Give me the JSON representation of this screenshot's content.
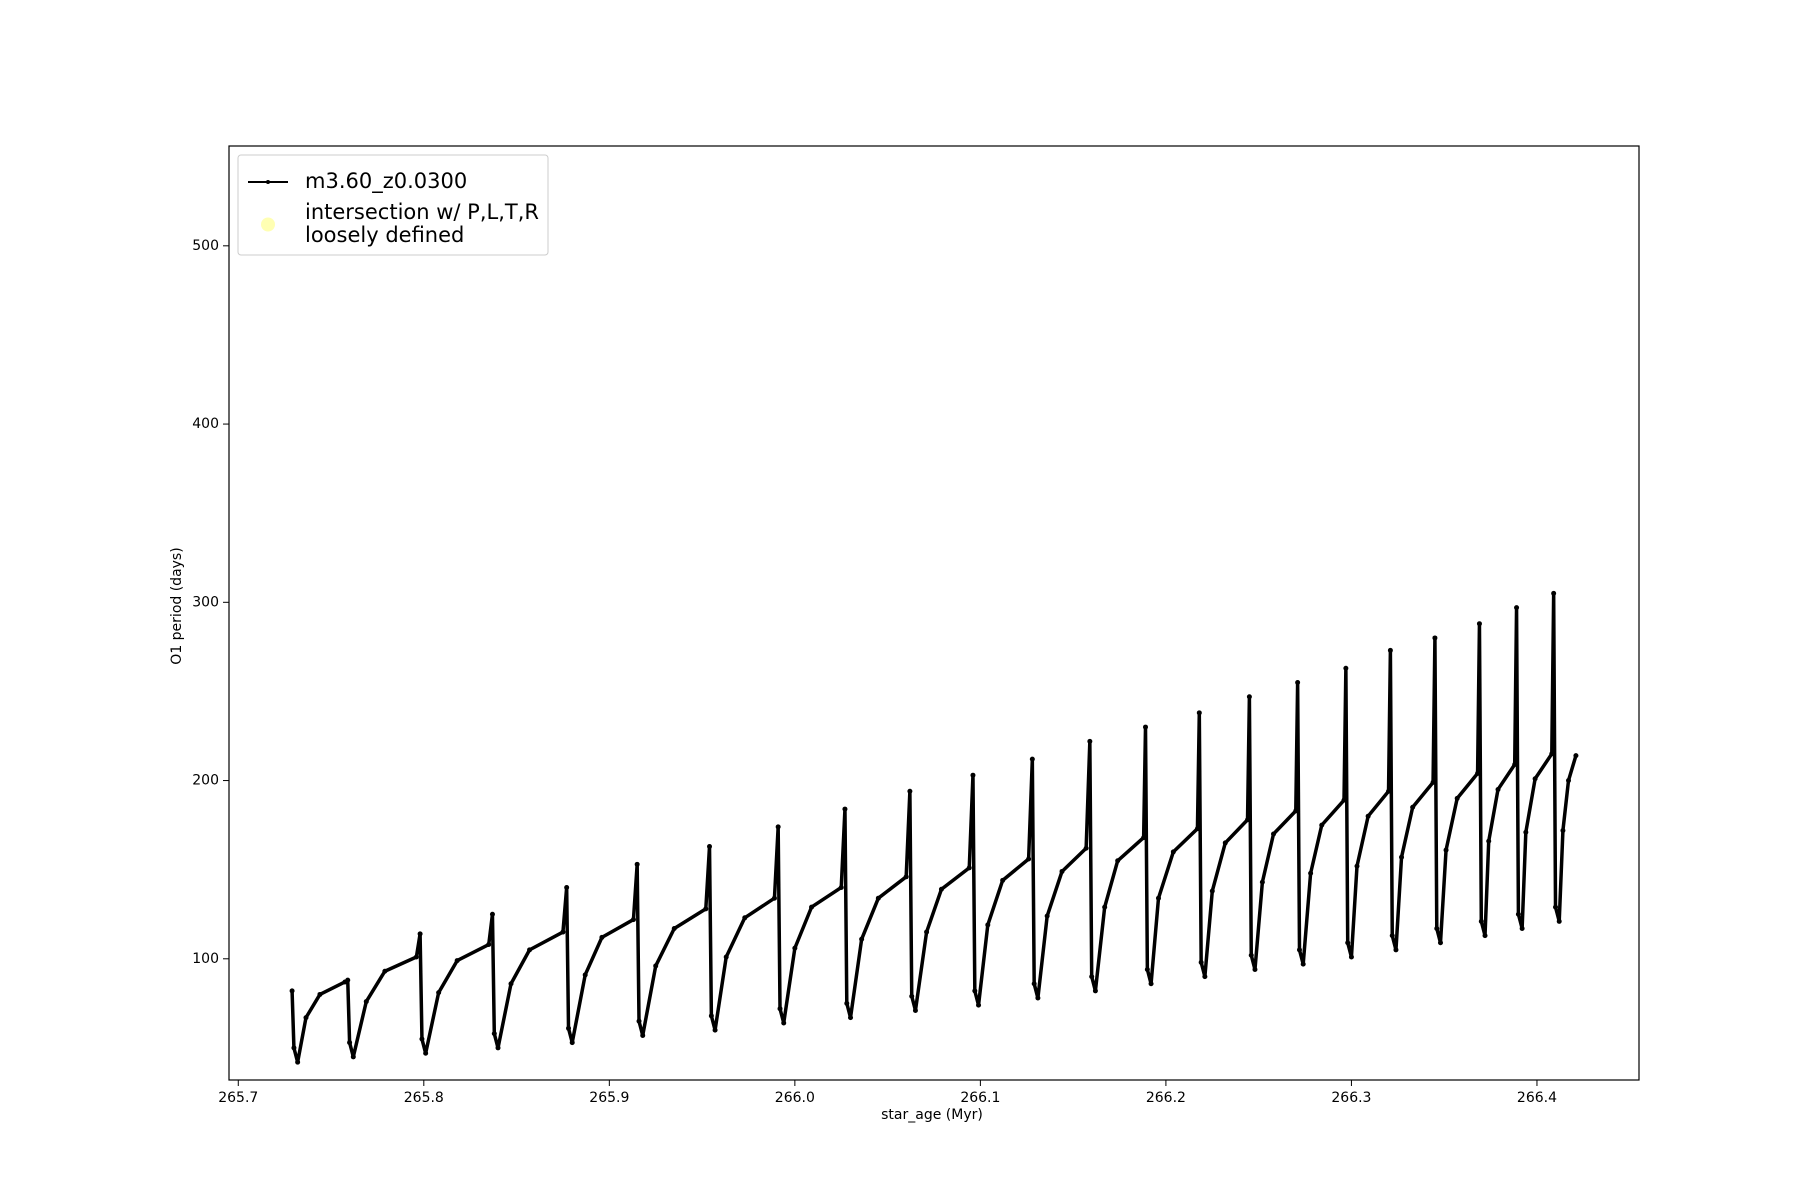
{
  "chart_data": {
    "type": "line",
    "xlabel": "star_age (Myr)",
    "ylabel": "O1 period (days)",
    "xlim": [
      265.695,
      266.455
    ],
    "ylim": [
      32,
      556
    ],
    "xticks": [
      265.7,
      265.8,
      265.9,
      {
        "value": 266,
        "label": "266.0"
      },
      266.1,
      266.2,
      266.3,
      266.4
    ],
    "yticks": [
      100,
      200,
      300,
      400,
      500
    ],
    "legend": "upper left",
    "x": [
      265.729,
      265.73,
      265.732,
      265.7365,
      265.744,
      265.7575,
      265.759,
      265.76,
      265.762,
      265.769,
      265.779,
      265.796,
      265.798,
      265.799,
      265.801,
      265.808,
      265.818,
      265.835,
      265.837,
      265.838,
      265.84,
      265.847,
      265.857,
      265.875,
      265.877,
      265.878,
      265.88,
      265.887,
      265.896,
      265.913,
      265.915,
      265.916,
      265.918,
      265.925,
      265.935,
      265.952,
      265.954,
      265.955,
      265.957,
      265.963,
      265.973,
      265.989,
      265.991,
      265.992,
      265.994,
      266.0,
      266.009,
      266.025,
      266.027,
      266.028,
      266.03,
      266.036,
      266.045,
      266.06,
      266.062,
      266.063,
      266.065,
      266.071,
      266.079,
      266.094,
      266.096,
      266.097,
      266.099,
      266.104,
      266.112,
      266.126,
      266.128,
      266.129,
      266.131,
      266.136,
      266.144,
      266.157,
      266.159,
      266.16,
      266.162,
      266.167,
      266.174,
      266.188,
      266.189,
      266.19,
      266.192,
      266.196,
      266.204,
      266.217,
      266.218,
      266.219,
      266.221,
      266.225,
      266.232,
      266.244,
      266.245,
      266.246,
      266.248,
      266.252,
      266.258,
      266.27,
      266.271,
      266.272,
      266.274,
      266.278,
      266.284,
      266.296,
      266.297,
      266.298,
      266.3,
      266.303,
      266.309,
      266.32,
      266.321,
      266.322,
      266.324,
      266.327,
      266.333,
      266.344,
      266.345,
      266.346,
      266.348,
      266.351,
      266.357,
      266.368,
      266.369,
      266.37,
      266.372,
      266.374,
      266.379,
      266.388,
      266.389,
      266.39,
      266.392,
      266.394,
      266.399,
      266.408,
      266.409,
      266.41,
      266.412,
      266.414,
      266.417,
      266.421
    ],
    "series": [
      {
        "name": "m3.60_z0.0300",
        "color": "#000000",
        "marker": "dot",
        "values": [
          82,
          50,
          42,
          67,
          80,
          87,
          88,
          53,
          45,
          76,
          93,
          101,
          114,
          55,
          47,
          81,
          99,
          108,
          125,
          58,
          50,
          86,
          105,
          115,
          140,
          61,
          53,
          91,
          112,
          122,
          153,
          65,
          57,
          96,
          117,
          128,
          163,
          68,
          60,
          101,
          123,
          134,
          174,
          72,
          64,
          106,
          129,
          140,
          184,
          75,
          67,
          111,
          134,
          146,
          194,
          79,
          71,
          115,
          139,
          151,
          203,
          82,
          74,
          119,
          144,
          156,
          212,
          86,
          78,
          124,
          149,
          162,
          222,
          90,
          82,
          129,
          155,
          168,
          230,
          94,
          86,
          134,
          160,
          173,
          238,
          98,
          90,
          138,
          165,
          178,
          247,
          102,
          94,
          143,
          170,
          183,
          255,
          105,
          97,
          148,
          175,
          189,
          263,
          109,
          101,
          152,
          180,
          194,
          273,
          113,
          105,
          157,
          185,
          199,
          280,
          117,
          109,
          161,
          190,
          204,
          288,
          121,
          113,
          166,
          195,
          209,
          297,
          125,
          117,
          171,
          201,
          215,
          305,
          129,
          121,
          172,
          200,
          214
        ]
      },
      {
        "name": "intersection w/ P,L,T,R\nloosely defined",
        "color": "#ffffb3",
        "marker": "circle",
        "x": [],
        "values": []
      }
    ]
  }
}
